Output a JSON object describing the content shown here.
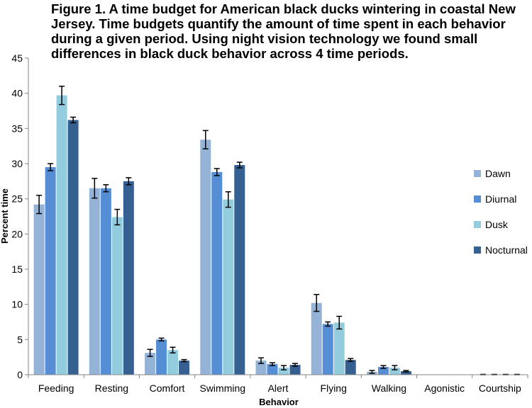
{
  "title": "Figure 1. A time budget for American black ducks wintering in coastal New Jersey.  Time budgets quantify the amount of time spent in each behavior during a given period.  Using night vision technology we found small differences in black duck behavior across 4 time periods.",
  "chart_data": {
    "type": "bar",
    "title": "Figure 1. A time budget for American black ducks wintering in coastal New Jersey.  Time budgets quantify the amount of time spent in each behavior during a given period.  Using night vision technology we found small differences in black duck behavior across 4 time periods.",
    "xlabel": "Behavior",
    "ylabel": "Percent time",
    "ylim": [
      0,
      45
    ],
    "yticks": [
      0,
      5,
      10,
      15,
      20,
      25,
      30,
      35,
      40,
      45
    ],
    "ytick_labels": [
      "0",
      "5",
      "10",
      "15",
      "20",
      "25",
      "30",
      "35",
      "40",
      "45"
    ],
    "categories": [
      "Feeding",
      "Resting",
      "Comfort",
      "Swimming",
      "Alert",
      "Flying",
      "Walking",
      "Agonistic",
      "Courtship"
    ],
    "legend_position": "right",
    "series": [
      {
        "name": "Dawn",
        "color": "#95b3d7",
        "values": [
          24.2,
          26.5,
          3.1,
          33.4,
          2.0,
          10.2,
          0.4,
          0.0,
          0.0
        ],
        "errors": [
          1.3,
          1.4,
          0.5,
          1.3,
          0.4,
          1.2,
          0.2,
          0.0,
          0.05
        ]
      },
      {
        "name": "Diurnal",
        "color": "#558ed5",
        "values": [
          29.5,
          26.5,
          5.0,
          28.8,
          1.5,
          7.2,
          1.1,
          0.0,
          0.0
        ],
        "errors": [
          0.5,
          0.5,
          0.2,
          0.5,
          0.2,
          0.3,
          0.2,
          0.0,
          0.05
        ]
      },
      {
        "name": "Dusk",
        "color": "#93cddd",
        "values": [
          39.7,
          22.4,
          3.5,
          24.9,
          1.0,
          7.4,
          1.0,
          0.0,
          0.0
        ],
        "errors": [
          1.3,
          1.1,
          0.4,
          1.1,
          0.3,
          0.9,
          0.3,
          0.0,
          0.05
        ]
      },
      {
        "name": "Nocturnal",
        "color": "#376092",
        "values": [
          36.2,
          27.5,
          2.0,
          29.8,
          1.4,
          2.1,
          0.5,
          0.0,
          0.0
        ],
        "errors": [
          0.4,
          0.5,
          0.15,
          0.4,
          0.2,
          0.2,
          0.1,
          0.0,
          0.05
        ]
      }
    ]
  }
}
